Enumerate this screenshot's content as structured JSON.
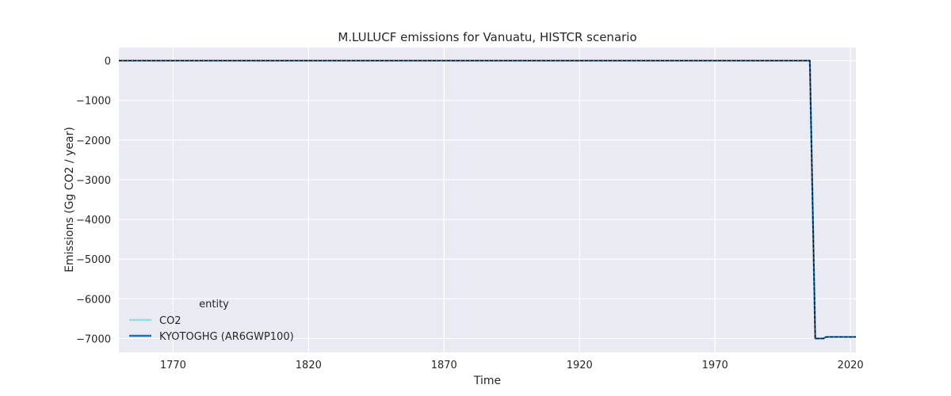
{
  "chart_data": {
    "type": "line",
    "title": "M.LULUCF emissions for Vanuatu, HISTCR scenario",
    "xlabel": "Time",
    "ylabel": "Emissions (Gg CO2 / year)",
    "xlim": [
      1750,
      2022
    ],
    "ylim": [
      -7350,
      330
    ],
    "x_ticks": [
      1770,
      1820,
      1870,
      1920,
      1970,
      2020
    ],
    "y_ticks": [
      0,
      -1000,
      -2000,
      -3000,
      -4000,
      -5000,
      -6000,
      -7000
    ],
    "grid": true,
    "legend": {
      "title": "entity",
      "placement": "lower-left",
      "entries": [
        "CO2",
        "KYOTOGHG (AR6GWP100)"
      ]
    },
    "series": [
      {
        "name": "CO2",
        "color": "#9ed9e6",
        "style": "solid",
        "points": [
          [
            1750,
            0
          ],
          [
            2005,
            0
          ],
          [
            2007,
            -7000
          ],
          [
            2010,
            -7000
          ],
          [
            2011,
            -6960
          ],
          [
            2022,
            -6960
          ]
        ]
      },
      {
        "name": "KYOTOGHG (AR6GWP100)",
        "color": "#1f6fb2",
        "style": "solid",
        "points": [
          [
            1750,
            0
          ],
          [
            2005,
            0
          ],
          [
            2007,
            -7000
          ],
          [
            2010,
            -7000
          ],
          [
            2011,
            -6960
          ],
          [
            2022,
            -6960
          ]
        ]
      }
    ],
    "overlay_line": {
      "color": "#000000",
      "style": "dashed",
      "points": [
        [
          1750,
          0
        ],
        [
          2005,
          0
        ],
        [
          2007,
          -7000
        ],
        [
          2010,
          -7000
        ],
        [
          2011,
          -6960
        ],
        [
          2022,
          -6960
        ]
      ]
    }
  }
}
